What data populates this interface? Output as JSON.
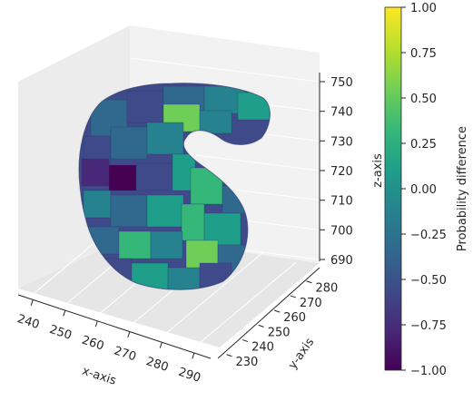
{
  "chart_data": {
    "type": "3d-voxel-surface",
    "xlabel": "x-axis",
    "ylabel": "y-axis",
    "zlabel": "z-axis",
    "xticks": [
      240,
      250,
      260,
      270,
      280,
      290
    ],
    "yticks": [
      230,
      240,
      250,
      260,
      270,
      280
    ],
    "zticks": [
      690,
      700,
      710,
      720,
      730,
      740,
      750
    ],
    "colorbar": {
      "label": "Probability difference",
      "ticks": [
        "1.00",
        "0.75",
        "0.50",
        "0.25",
        "0.00",
        "−0.25",
        "−0.50",
        "−0.75",
        "−1.00"
      ],
      "range": [
        -1.0,
        1.0
      ],
      "colormap": "viridis"
    },
    "grid": true
  },
  "colors": {
    "viridis": [
      "#440154",
      "#482878",
      "#3e4a89",
      "#31688e",
      "#26828e",
      "#1f9e89",
      "#35b779",
      "#6ece58",
      "#b5de2b",
      "#fde725"
    ],
    "pane_back": "#f2f2f2",
    "pane_side": "#e6e6e6",
    "pane_floor": "#ebebeb",
    "grid": "#ffffff"
  }
}
